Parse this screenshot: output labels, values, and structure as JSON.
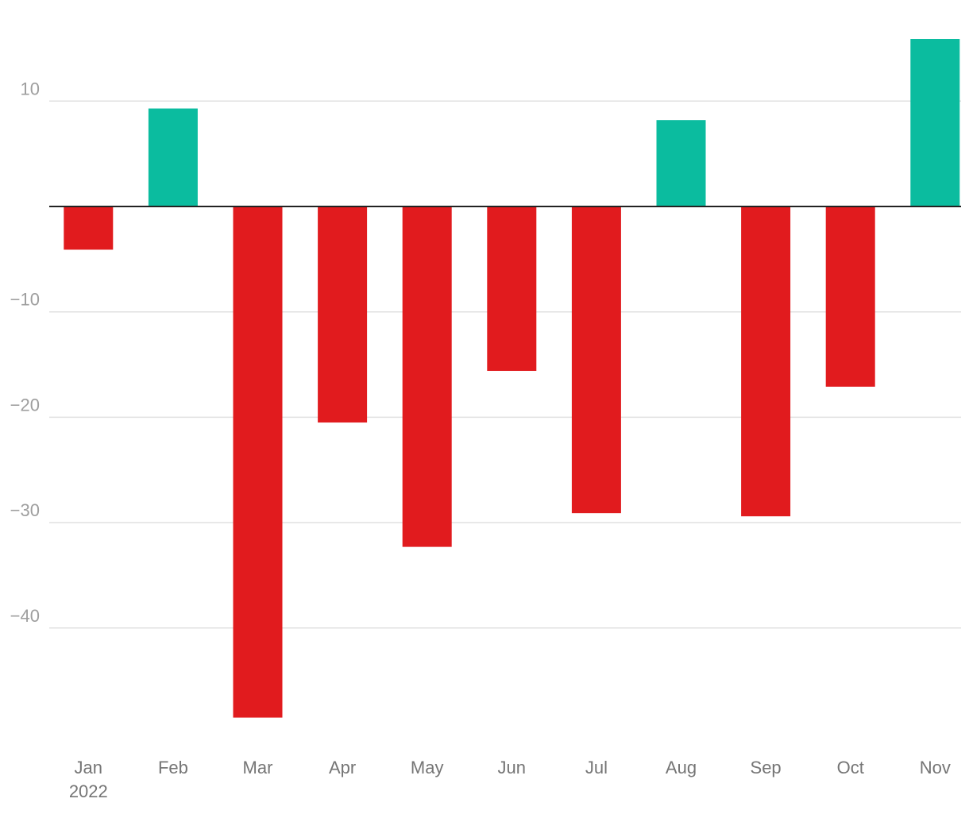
{
  "chart_data": {
    "type": "bar",
    "title": "",
    "xlabel": "",
    "ylabel": "",
    "categories": [
      "Jan",
      "Feb",
      "Mar",
      "Apr",
      "May",
      "Jun",
      "Jul",
      "Aug",
      "Sep",
      "Oct",
      "Nov"
    ],
    "year_label": "2022",
    "values": [
      -4.1,
      9.3,
      -48.5,
      -20.5,
      -32.3,
      -15.6,
      -29.1,
      8.2,
      -29.4,
      -17.1,
      15.9
    ],
    "ylim": [
      -50,
      16
    ],
    "yticks": [
      10,
      -10,
      -20,
      -30,
      -40
    ],
    "ytick_labels": [
      "10",
      "−10",
      "−20",
      "−30",
      "−40"
    ],
    "grid": true,
    "legend": "none",
    "colors": {
      "positive": "#0bbc9f",
      "negative": "#e11b1e",
      "zero_line": "#222222",
      "grid": "#e0e0e0"
    }
  }
}
